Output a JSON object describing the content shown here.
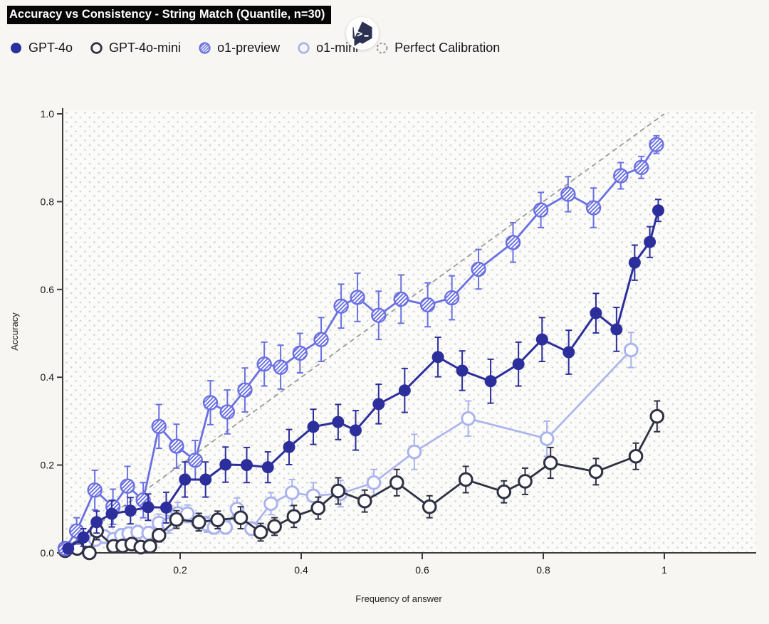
{
  "title": "Accuracy vs Consistency - String Match (Quantile, n=30)",
  "cursor_badge": {
    "icon": "hexagon-code-cursor-icon",
    "glyph": ">"
  },
  "colors": {
    "page_background": "#f7f6f3",
    "plot_background": "#fbfbf9",
    "plot_dots": "#d8d7d3",
    "axis": "#3d3d3d",
    "gpt4o": "#2c2e9c",
    "gpt4o_mini": "#2f3142",
    "o1_preview": "#6a70e2",
    "o1_mini": "#aab3ee",
    "perfect_calibration": "#9b9b9b"
  },
  "chart_data": {
    "type": "line",
    "title": "Accuracy vs Consistency - String Match (Quantile, n=30)",
    "xlabel": "Frequency of answer",
    "ylabel": "Accuracy",
    "xlim": [
      0,
      1.15
    ],
    "ylim": [
      0,
      1.0
    ],
    "xticks": [
      0.2,
      0.4,
      0.6,
      0.8,
      1
    ],
    "xtick_labels": [
      "0.2",
      "0.4",
      "0.6",
      "0.8",
      "1"
    ],
    "yticks": [
      0,
      0.2,
      0.4,
      0.6,
      0.8,
      1
    ],
    "ytick_labels": [
      "0.0",
      "0.2",
      "0.4",
      "0.6",
      "0.8",
      "1.0"
    ],
    "grid": "dotted-background",
    "legend_position": "top-left",
    "series": [
      {
        "name": "GPT-4o",
        "marker": "circle-filled",
        "color": "#2c2e9c",
        "line_style": "solid",
        "line_width": 3,
        "z": 4,
        "x": [
          0.015,
          0.04,
          0.062,
          0.087,
          0.118,
          0.147,
          0.177,
          0.208,
          0.242,
          0.275,
          0.31,
          0.345,
          0.38,
          0.42,
          0.461,
          0.49,
          0.528,
          0.571,
          0.626,
          0.666,
          0.713,
          0.759,
          0.798,
          0.842,
          0.887,
          0.921,
          0.951,
          0.976,
          0.99
        ],
        "y": [
          0.01,
          0.035,
          0.07,
          0.089,
          0.096,
          0.104,
          0.103,
          0.167,
          0.167,
          0.201,
          0.2,
          0.195,
          0.241,
          0.287,
          0.298,
          0.279,
          0.339,
          0.37,
          0.446,
          0.415,
          0.391,
          0.43,
          0.486,
          0.457,
          0.546,
          0.509,
          0.661,
          0.708,
          0.78
        ],
        "err": [
          0.01,
          0.02,
          0.025,
          0.03,
          0.03,
          0.03,
          0.035,
          0.04,
          0.04,
          0.04,
          0.04,
          0.035,
          0.04,
          0.04,
          0.04,
          0.045,
          0.045,
          0.05,
          0.045,
          0.045,
          0.05,
          0.05,
          0.05,
          0.05,
          0.045,
          0.05,
          0.04,
          0.035,
          0.025
        ]
      },
      {
        "name": "GPT-4o-mini",
        "marker": "circle-open",
        "color": "#2f3142",
        "line_style": "solid",
        "line_width": 2.8,
        "z": 2,
        "x": [
          0.01,
          0.03,
          0.05,
          0.062,
          0.09,
          0.105,
          0.12,
          0.135,
          0.15,
          0.165,
          0.194,
          0.231,
          0.262,
          0.3,
          0.333,
          0.356,
          0.388,
          0.428,
          0.461,
          0.505,
          0.558,
          0.612,
          0.672,
          0.735,
          0.77,
          0.812,
          0.887,
          0.953,
          0.988
        ],
        "y": [
          0.005,
          0.01,
          0.0,
          0.05,
          0.015,
          0.016,
          0.02,
          0.013,
          0.015,
          0.04,
          0.076,
          0.07,
          0.075,
          0.08,
          0.047,
          0.06,
          0.083,
          0.102,
          0.141,
          0.118,
          0.16,
          0.105,
          0.167,
          0.139,
          0.163,
          0.205,
          0.185,
          0.22,
          0.311
        ],
        "err": [
          0.005,
          0.01,
          0.005,
          0.02,
          0.01,
          0.01,
          0.01,
          0.008,
          0.01,
          0.015,
          0.02,
          0.02,
          0.02,
          0.025,
          0.02,
          0.02,
          0.025,
          0.025,
          0.03,
          0.025,
          0.03,
          0.025,
          0.03,
          0.025,
          0.03,
          0.035,
          0.03,
          0.03,
          0.035
        ]
      },
      {
        "name": "o1-preview",
        "marker": "circle-hatched",
        "color": "#6a70e2",
        "line_style": "solid",
        "line_width": 2.8,
        "z": 3,
        "x": [
          0.01,
          0.029,
          0.059,
          0.089,
          0.113,
          0.139,
          0.165,
          0.194,
          0.225,
          0.25,
          0.278,
          0.307,
          0.339,
          0.366,
          0.398,
          0.433,
          0.466,
          0.493,
          0.528,
          0.565,
          0.609,
          0.649,
          0.693,
          0.75,
          0.796,
          0.841,
          0.883,
          0.928,
          0.962,
          0.987
        ],
        "y": [
          0.01,
          0.05,
          0.143,
          0.105,
          0.152,
          0.12,
          0.288,
          0.243,
          0.211,
          0.342,
          0.321,
          0.371,
          0.43,
          0.423,
          0.455,
          0.486,
          0.562,
          0.582,
          0.541,
          0.578,
          0.565,
          0.581,
          0.646,
          0.707,
          0.781,
          0.817,
          0.786,
          0.859,
          0.878,
          0.93
        ],
        "err": [
          0.01,
          0.03,
          0.045,
          0.04,
          0.045,
          0.04,
          0.05,
          0.05,
          0.045,
          0.05,
          0.05,
          0.05,
          0.05,
          0.05,
          0.045,
          0.05,
          0.05,
          0.055,
          0.055,
          0.055,
          0.05,
          0.05,
          0.045,
          0.045,
          0.04,
          0.04,
          0.045,
          0.03,
          0.025,
          0.02
        ]
      },
      {
        "name": "o1-mini",
        "marker": "circle-open",
        "color": "#aab3ee",
        "line_style": "solid",
        "line_width": 2.6,
        "z": 1,
        "x": [
          0.015,
          0.045,
          0.06,
          0.075,
          0.09,
          0.103,
          0.115,
          0.13,
          0.148,
          0.165,
          0.181,
          0.196,
          0.212,
          0.23,
          0.244,
          0.256,
          0.275,
          0.294,
          0.318,
          0.35,
          0.385,
          0.42,
          0.465,
          0.52,
          0.587,
          0.676,
          0.806,
          0.945
        ],
        "y": [
          0.01,
          0.025,
          0.03,
          0.037,
          0.031,
          0.04,
          0.044,
          0.047,
          0.045,
          0.068,
          0.065,
          0.09,
          0.089,
          0.07,
          0.065,
          0.058,
          0.058,
          0.1,
          0.055,
          0.112,
          0.137,
          0.13,
          0.135,
          0.16,
          0.23,
          0.306,
          0.26,
          0.462
        ],
        "err": [
          0.008,
          0.012,
          0.012,
          0.015,
          0.012,
          0.015,
          0.015,
          0.015,
          0.015,
          0.02,
          0.02,
          0.025,
          0.02,
          0.02,
          0.018,
          0.015,
          0.015,
          0.025,
          0.015,
          0.025,
          0.03,
          0.03,
          0.03,
          0.03,
          0.04,
          0.04,
          0.04,
          0.04
        ]
      },
      {
        "name": "Perfect Calibration",
        "marker": "none",
        "color": "#9b9b9b",
        "line_style": "dashed",
        "line_width": 1.8,
        "z": 0,
        "x": [
          0.012,
          1.0
        ],
        "y": [
          0.012,
          1.0
        ]
      }
    ]
  }
}
